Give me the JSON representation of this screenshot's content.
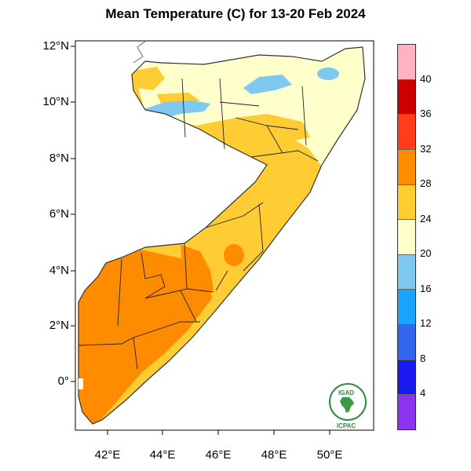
{
  "title": "Mean Temperature (C) for 13-20 Feb 2024",
  "axes": {
    "lon_range": [
      41.0,
      51.6
    ],
    "lat_range": [
      -1.6,
      12.2
    ],
    "lon_ticks": [
      {
        "value": 42,
        "label": "42°E"
      },
      {
        "value": 44,
        "label": "44°E"
      },
      {
        "value": 46,
        "label": "46°E"
      },
      {
        "value": 48,
        "label": "48°E"
      },
      {
        "value": 50,
        "label": "50°E"
      }
    ],
    "lat_ticks": [
      {
        "value": 12,
        "label": "12°N"
      },
      {
        "value": 10,
        "label": "10°N"
      },
      {
        "value": 8,
        "label": "8°N"
      },
      {
        "value": 6,
        "label": "6°N"
      },
      {
        "value": 4,
        "label": "4°N"
      },
      {
        "value": 2,
        "label": "2°N"
      },
      {
        "value": 0,
        "label": "0°"
      }
    ]
  },
  "colorbar": {
    "labels": [
      "40",
      "36",
      "32",
      "28",
      "24",
      "20",
      "16",
      "12",
      "8",
      "4"
    ],
    "colors": [
      "#ffb3c1",
      "#cc0000",
      "#ff3d1a",
      "#ff8c00",
      "#ffcc33",
      "#ffffcc",
      "#7fc8f0",
      "#1aa3ff",
      "#3366ee",
      "#1a1aee",
      "#8c33ee"
    ]
  },
  "colors": {
    "band_20_24": "#ffffcc",
    "band_24_28": "#ffcc33",
    "band_28_32": "#ff8c00",
    "band_16_20": "#7fc8f0"
  },
  "logo": {
    "org_top": "IGAD",
    "org_bottom": "ICPAC"
  }
}
